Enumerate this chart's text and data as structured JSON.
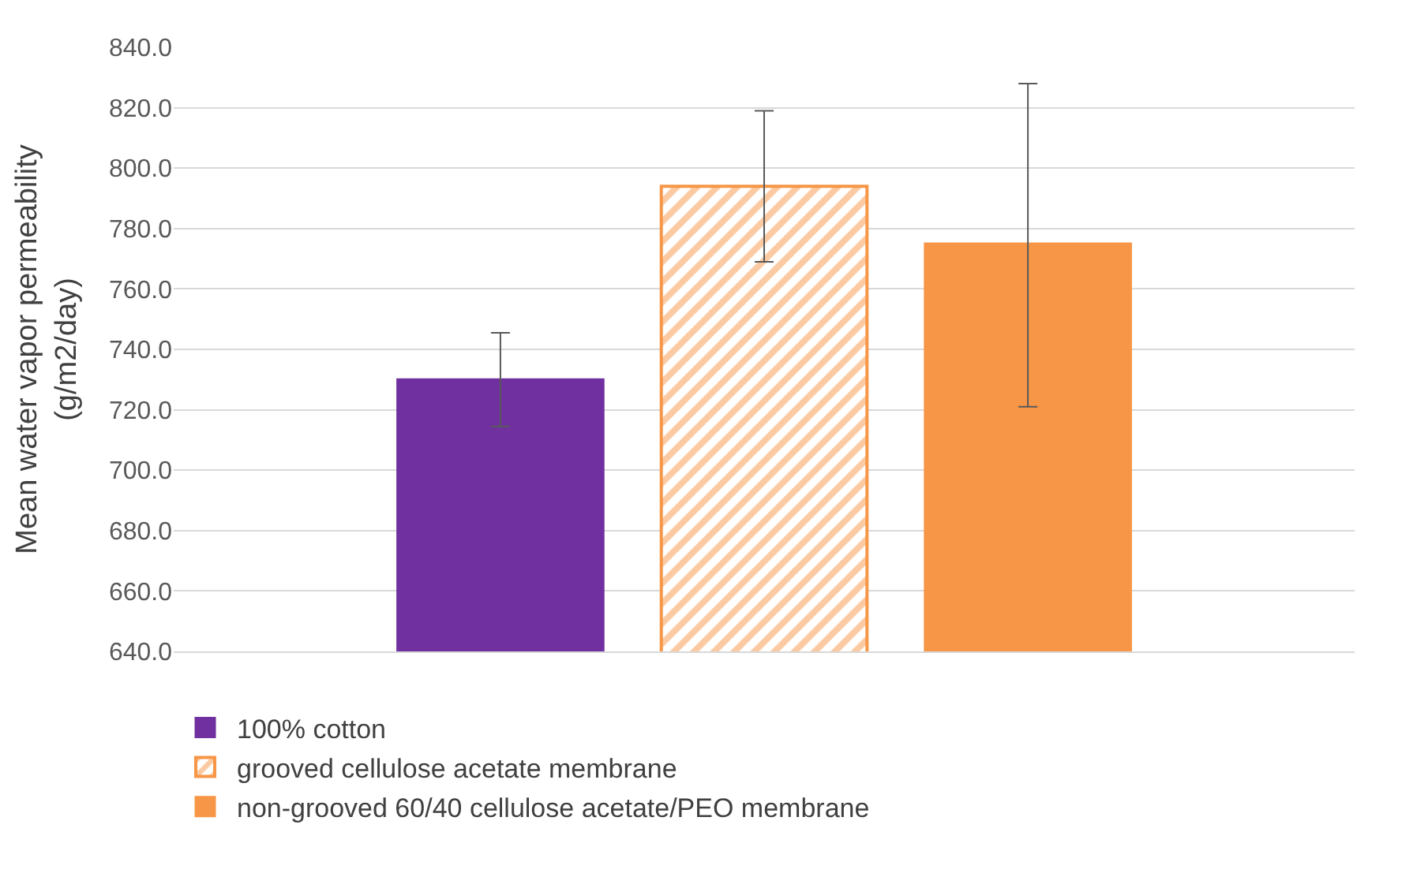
{
  "chart_data": {
    "type": "bar",
    "ylabel": "Mean water vapor permeability\n(g/m2/day)",
    "categories": [
      null
    ],
    "series": [
      {
        "name": "100% cotton",
        "color": "#7030a0",
        "values": [
          730
        ],
        "errors": [
          15.5
        ]
      },
      {
        "name": "grooved cellulose acetate membrane",
        "color": "#f79646",
        "values": [
          794
        ],
        "errors": [
          25
        ]
      },
      {
        "name": "non-grooved 60/40 cellulose acetate/PEO membrane",
        "color": "#f79646",
        "values": [
          775
        ],
        "errors": [
          [
            721,
            828
          ]
        ]
      }
    ],
    "ylim": [
      640,
      840
    ],
    "yticks": [
      {
        "value": 640,
        "label": "640.0"
      },
      {
        "value": 660,
        "label": "660.0"
      },
      {
        "value": 680,
        "label": "680.0"
      },
      {
        "value": 700,
        "label": "700.0"
      },
      {
        "value": 720,
        "label": "720.0"
      },
      {
        "value": 740,
        "label": "740.0"
      },
      {
        "value": 760,
        "label": "760.0"
      },
      {
        "value": 780,
        "label": "780.0"
      },
      {
        "value": 800,
        "label": "800.0"
      },
      {
        "value": 820,
        "label": "820.0"
      },
      {
        "value": 840,
        "label": "840.0"
      }
    ],
    "grid": "y",
    "legend": "bottom"
  }
}
